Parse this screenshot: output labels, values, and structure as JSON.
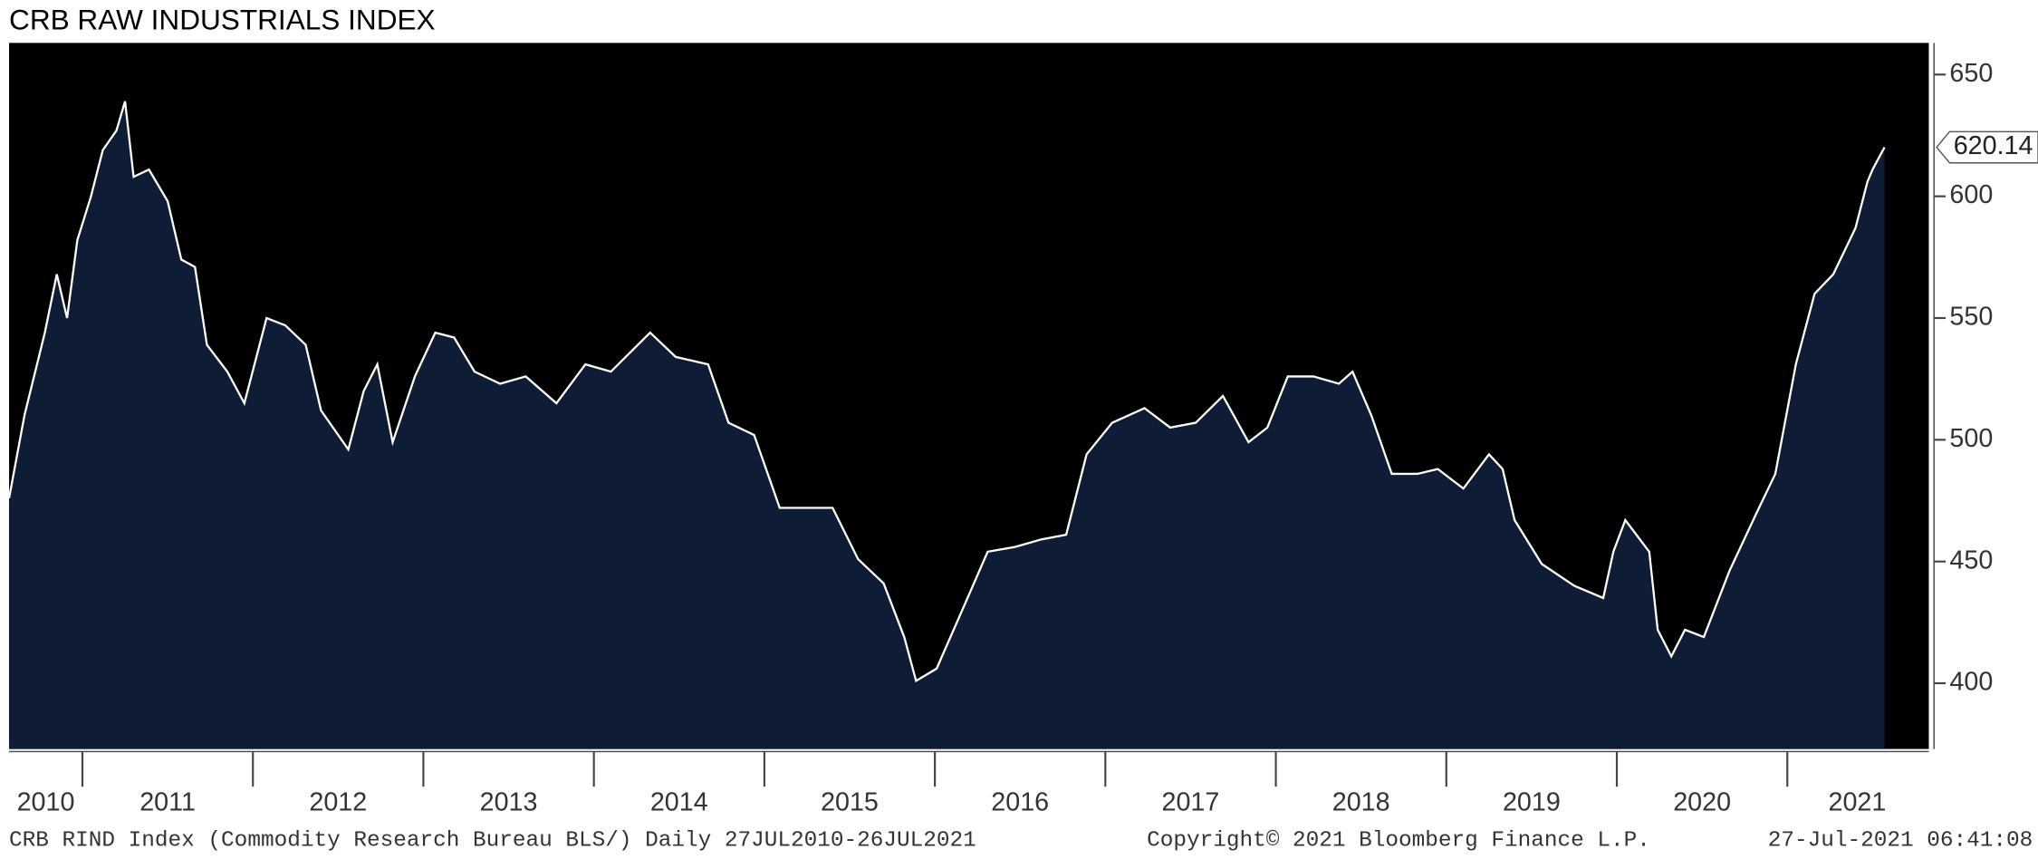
{
  "chart_data": {
    "type": "area",
    "title": "CRB RAW INDUSTRIALS INDEX",
    "x": [
      2010.57,
      2010.66,
      2010.78,
      2010.85,
      2010.91,
      2010.97,
      2011.05,
      2011.12,
      2011.2,
      2011.25,
      2011.3,
      2011.39,
      2011.5,
      2011.58,
      2011.66,
      2011.73,
      2011.85,
      2011.95,
      2012.08,
      2012.19,
      2012.31,
      2012.4,
      2012.56,
      2012.65,
      2012.73,
      2012.82,
      2012.95,
      2013.07,
      2013.18,
      2013.3,
      2013.45,
      2013.6,
      2013.78,
      2013.95,
      2014.1,
      2014.33,
      2014.48,
      2014.67,
      2014.79,
      2014.94,
      2015.09,
      2015.24,
      2015.4,
      2015.55,
      2015.7,
      2015.82,
      2015.89,
      2016.01,
      2016.16,
      2016.31,
      2016.47,
      2016.62,
      2016.77,
      2016.89,
      2017.04,
      2017.23,
      2017.38,
      2017.53,
      2017.69,
      2017.84,
      2017.95,
      2018.07,
      2018.22,
      2018.37,
      2018.45,
      2018.56,
      2018.68,
      2018.83,
      2018.95,
      2019.1,
      2019.25,
      2019.33,
      2019.4,
      2019.56,
      2019.75,
      2019.92,
      2019.98,
      2020.05,
      2020.19,
      2020.24,
      2020.32,
      2020.4,
      2020.51,
      2020.66,
      2020.82,
      2020.93,
      2021.05,
      2021.16,
      2021.27,
      2021.4,
      2021.47,
      2021.5,
      2021.57
    ],
    "values": [
      476,
      510,
      544,
      568,
      550,
      582,
      600,
      619,
      627,
      639,
      608,
      611,
      598,
      574,
      571,
      539,
      528,
      515,
      550,
      547,
      539,
      512,
      496,
      520,
      531,
      499,
      526,
      544,
      542,
      528,
      523,
      526,
      515,
      531,
      528,
      544,
      534,
      531,
      507,
      502,
      472,
      472,
      472,
      451,
      441,
      419,
      401,
      406,
      430,
      454,
      456,
      459,
      461,
      494,
      507,
      513,
      505,
      507,
      518,
      499,
      505,
      526,
      526,
      523,
      528,
      510,
      486,
      486,
      488,
      480,
      494,
      488,
      467,
      449,
      440,
      435,
      454,
      467,
      454,
      422,
      411,
      422,
      419,
      446,
      470,
      486,
      531,
      560,
      568,
      587,
      606,
      611,
      620.14
    ],
    "color": "#0e1c36",
    "line_color": "#ffffff",
    "background": "#000000",
    "xlim": [
      2010.57,
      2021.83
    ],
    "ylim": [
      373,
      663
    ],
    "yticks": [
      400,
      450,
      500,
      550,
      600,
      650
    ],
    "xticks": [
      {
        "value": 2010.785,
        "label": "2010"
      },
      {
        "value": 2011.5,
        "label": "2011"
      },
      {
        "value": 2012.5,
        "label": "2012"
      },
      {
        "value": 2013.5,
        "label": "2013"
      },
      {
        "value": 2014.5,
        "label": "2014"
      },
      {
        "value": 2015.5,
        "label": "2015"
      },
      {
        "value": 2016.5,
        "label": "2016"
      },
      {
        "value": 2017.5,
        "label": "2017"
      },
      {
        "value": 2018.5,
        "label": "2018"
      },
      {
        "value": 2019.5,
        "label": "2019"
      },
      {
        "value": 2020.5,
        "label": "2020"
      },
      {
        "value": 2021.41,
        "label": "2021"
      }
    ],
    "year_boundaries": [
      2011,
      2012,
      2013,
      2014,
      2015,
      2016,
      2017,
      2018,
      2019,
      2020,
      2021
    ],
    "footer": {
      "left": "CRB RIND Index (Commodity Research Bureau BLS/)  Daily 27JUL2010-26JUL2021",
      "center": "Copyright© 2021 Bloomberg Finance L.P.",
      "right": "27-Jul-2021 06:41:08"
    }
  }
}
